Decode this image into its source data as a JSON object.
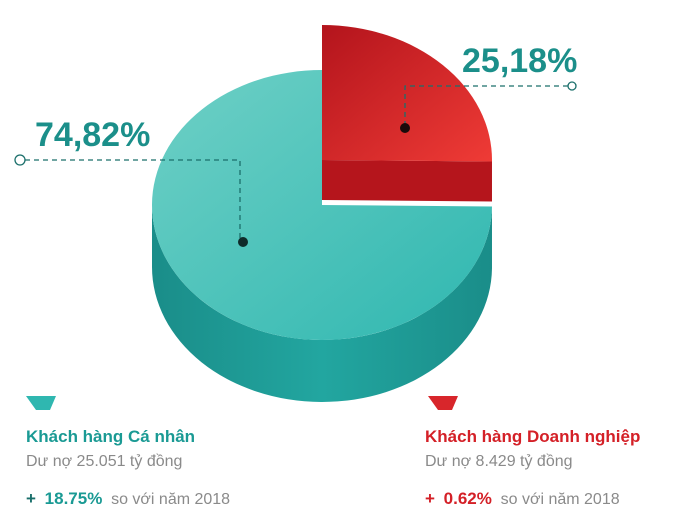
{
  "chart_data": {
    "type": "pie",
    "categories": [
      "Khách hàng Cá nhân",
      "Khách hàng Doanh nghiệp"
    ],
    "values": [
      74.82,
      25.18
    ],
    "value_labels": [
      "74,82%",
      "25,18%"
    ],
    "colors": [
      "#3cc0b8",
      "#d8262b"
    ],
    "details": [
      {
        "balance": "Dư nợ 25.051 tỷ đồng",
        "growth_sign": "+",
        "growth": "18.75%",
        "growth_text": "so với năm 2018"
      },
      {
        "balance": "Dư nợ 8.429 tỷ đồng",
        "growth_sign": "+",
        "growth": "0.62%",
        "growth_text": "so với năm 2018"
      }
    ]
  }
}
